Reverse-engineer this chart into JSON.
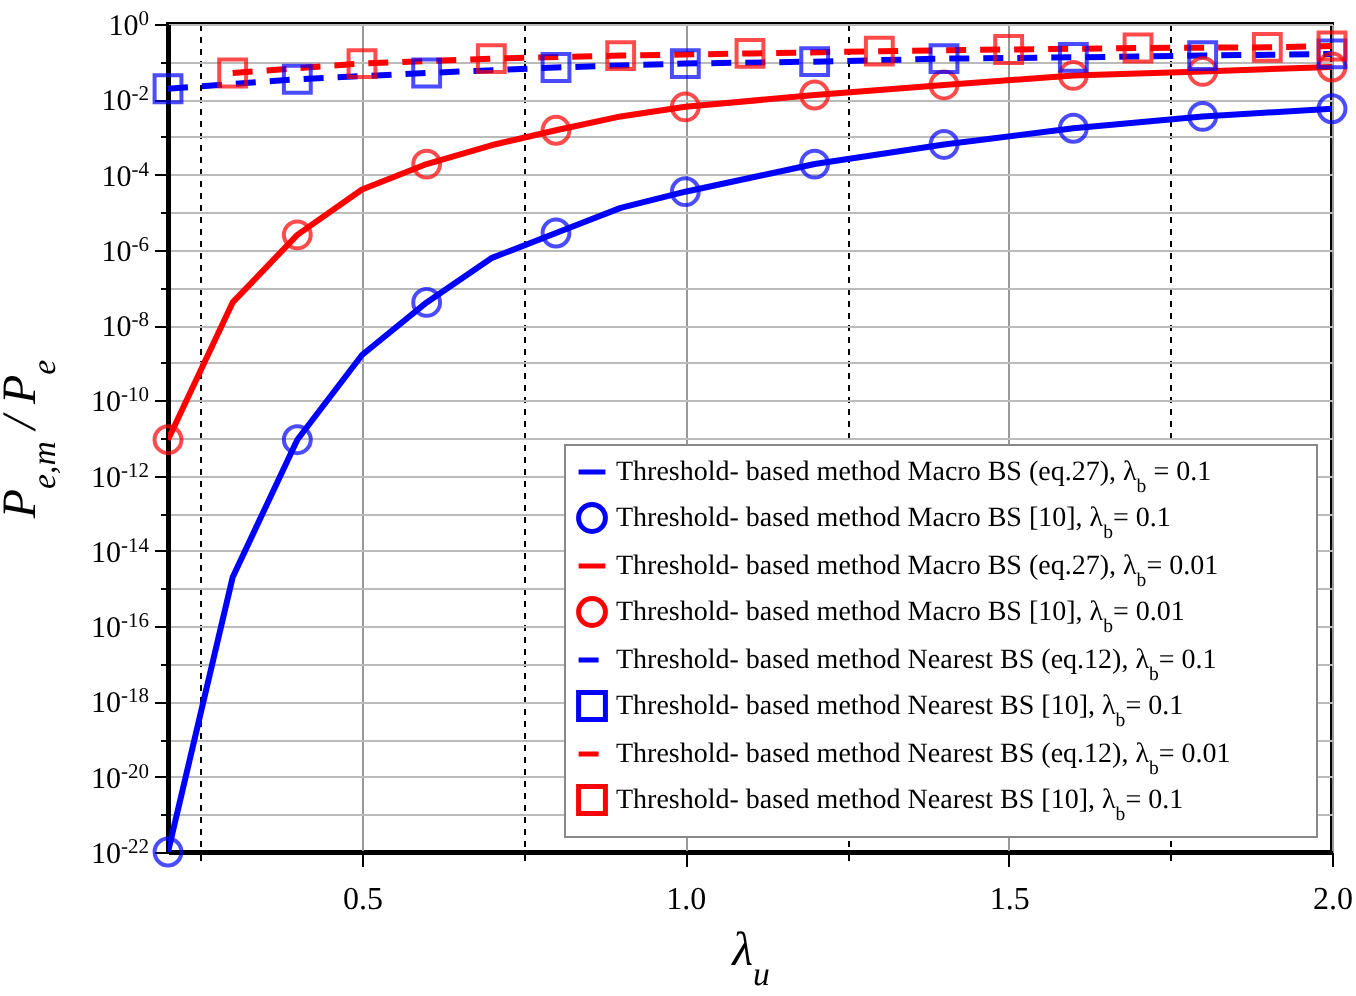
{
  "chart_data": {
    "type": "line",
    "xlabel": "λ$_{u}$",
    "ylabel": "P$_{e,m}$ / P$_{e}$",
    "log": "y",
    "grid": true,
    "legend": "bottom right",
    "xlim": [
      0.2,
      2.0
    ],
    "xticks": [
      {
        "value": 0.25,
        "label": null
      },
      0.5,
      {
        "value": 0.75,
        "label": null
      },
      {
        "value": 1,
        "label": "1.0"
      },
      {
        "value": 1.25,
        "label": null
      },
      1.5,
      {
        "value": 1.75,
        "label": null
      },
      {
        "value": 2,
        "label": "2.0"
      }
    ],
    "ylim": [
      1e-22,
      1
    ],
    "yticks": [
      {
        "value": 1e-22,
        "label": "10$^{-22}$"
      },
      {
        "value": 1e-21,
        "label": null
      },
      {
        "value": 1e-20,
        "label": "10$^{-20}$"
      },
      {
        "value": 1e-19,
        "label": null
      },
      {
        "value": 1e-18,
        "label": "10$^{-18}$"
      },
      {
        "value": 1e-17,
        "label": null
      },
      {
        "value": 1e-16,
        "label": "10$^{-16}$"
      },
      {
        "value": 1e-15,
        "label": null
      },
      {
        "value": 1e-14,
        "label": "10$^{-14}$"
      },
      {
        "value": 1e-13,
        "label": null
      },
      {
        "value": 1e-12,
        "label": "10$^{-12}$"
      },
      {
        "value": 1e-11,
        "label": null
      },
      {
        "value": 1e-10,
        "label": "10$^{-10}$"
      },
      {
        "value": 1e-09,
        "label": null
      },
      {
        "value": 1e-08,
        "label": "10$^{-8}$"
      },
      {
        "value": 1e-07,
        "label": null
      },
      {
        "value": 1e-06,
        "label": "10$^{-6}$"
      },
      {
        "value": 1e-05,
        "label": null
      },
      {
        "value": 0.0001,
        "label": "10$^{-4}$"
      },
      {
        "value": 0.001,
        "label": null
      },
      {
        "value": 0.01,
        "label": "10$^{-2}$"
      },
      {
        "value": 0.1,
        "label": null
      },
      {
        "value": 1,
        "label": "10$^{0}$"
      }
    ],
    "series": [
      {
        "name": "Threshold- based method Macro BS (eq.27), λ$_{b}$ = 0.1",
        "line_style": "solid",
        "color": "#0000ff",
        "x": [
          0.2,
          0.3,
          0.4,
          0.5,
          0.6,
          0.7,
          0.8,
          0.9,
          1.0,
          1.2,
          1.4,
          1.6,
          1.8,
          2.0
        ],
        "values": [
          1e-22,
          2e-15,
          9e-12,
          1.6e-09,
          4e-08,
          6e-07,
          2.8e-06,
          1.3e-05,
          3.5e-05,
          0.00019,
          0.00063,
          0.0017,
          0.0035,
          0.0056
        ]
      },
      {
        "name": "Threshold- based method Macro BS [10], λ$_{b}$= 0.1",
        "type": "scatter",
        "marker": "circle",
        "color": "#0000ff",
        "x": [
          0.2,
          0.4,
          0.6,
          0.8,
          1.0,
          1.2,
          1.4,
          1.6,
          1.8,
          2.0
        ],
        "values": [
          1e-22,
          9e-12,
          4e-08,
          2.8e-06,
          3.5e-05,
          0.00019,
          0.00063,
          0.0017,
          0.0035,
          0.0056
        ]
      },
      {
        "name": "Threshold- based method Macro BS (eq.27), λ$_{b}$= 0.01",
        "line_style": "solid",
        "color": "#ff0000",
        "x": [
          0.2,
          0.3,
          0.4,
          0.5,
          0.6,
          0.7,
          0.8,
          0.9,
          1.0,
          1.2,
          1.4,
          1.6,
          1.8,
          2.0
        ],
        "values": [
          9e-12,
          4e-08,
          2.5e-06,
          4e-05,
          0.00019,
          0.0006,
          0.0015,
          0.0035,
          0.0063,
          0.013,
          0.024,
          0.043,
          0.055,
          0.072
        ]
      },
      {
        "name": "Threshold- based method Macro BS [10], λ$_{b}$= 0.01",
        "type": "scatter",
        "marker": "circle",
        "color": "#ff0000",
        "x": [
          0.2,
          0.4,
          0.6,
          0.8,
          1.0,
          1.2,
          1.4,
          1.6,
          1.8,
          2.0
        ],
        "values": [
          9e-12,
          2.5e-06,
          0.00019,
          0.0015,
          0.0063,
          0.013,
          0.024,
          0.043,
          0.055,
          0.072
        ]
      },
      {
        "name": "Threshold- based method Nearest BS (eq.12), λ$_{b}$= 0.1",
        "line_style": "dashed",
        "color": "#0000ff",
        "x": [
          0.2,
          0.4,
          0.6,
          0.8,
          1.0,
          1.2,
          1.4,
          1.6,
          1.8,
          2.0
        ],
        "values": [
          0.019,
          0.034,
          0.05,
          0.07,
          0.089,
          0.1,
          0.12,
          0.13,
          0.145,
          0.16
        ]
      },
      {
        "name": "Threshold- based method Nearest BS [10], λ$_{b}$= 0.1",
        "type": "scatter",
        "marker": "square",
        "color": "#0000ff",
        "x": [
          0.2,
          0.4,
          0.6,
          0.8,
          1.0,
          1.2,
          1.4,
          1.6,
          1.8,
          2.0
        ],
        "values": [
          0.019,
          0.034,
          0.05,
          0.07,
          0.089,
          0.1,
          0.12,
          0.13,
          0.145,
          0.16
        ]
      },
      {
        "name": "Threshold- based method Nearest BS (eq.12), λ$_{b}$= 0.01",
        "line_style": "dashed",
        "color": "#ff0000",
        "x": [
          0.3,
          0.5,
          0.7,
          0.9,
          1.1,
          1.3,
          1.5,
          1.7,
          1.9,
          2.0
        ],
        "values": [
          0.05,
          0.089,
          0.12,
          0.145,
          0.165,
          0.19,
          0.21,
          0.23,
          0.24,
          0.26
        ]
      },
      {
        "name": "Threshold- based method Nearest BS [10], λ$_{b}$= 0.1",
        "type": "scatter",
        "marker": "square",
        "color": "#ff0000",
        "x": [
          0.3,
          0.5,
          0.7,
          0.9,
          1.1,
          1.3,
          1.5,
          1.7,
          1.9,
          2.0
        ],
        "values": [
          0.05,
          0.089,
          0.12,
          0.145,
          0.165,
          0.19,
          0.21,
          0.23,
          0.24,
          0.26
        ]
      }
    ]
  }
}
